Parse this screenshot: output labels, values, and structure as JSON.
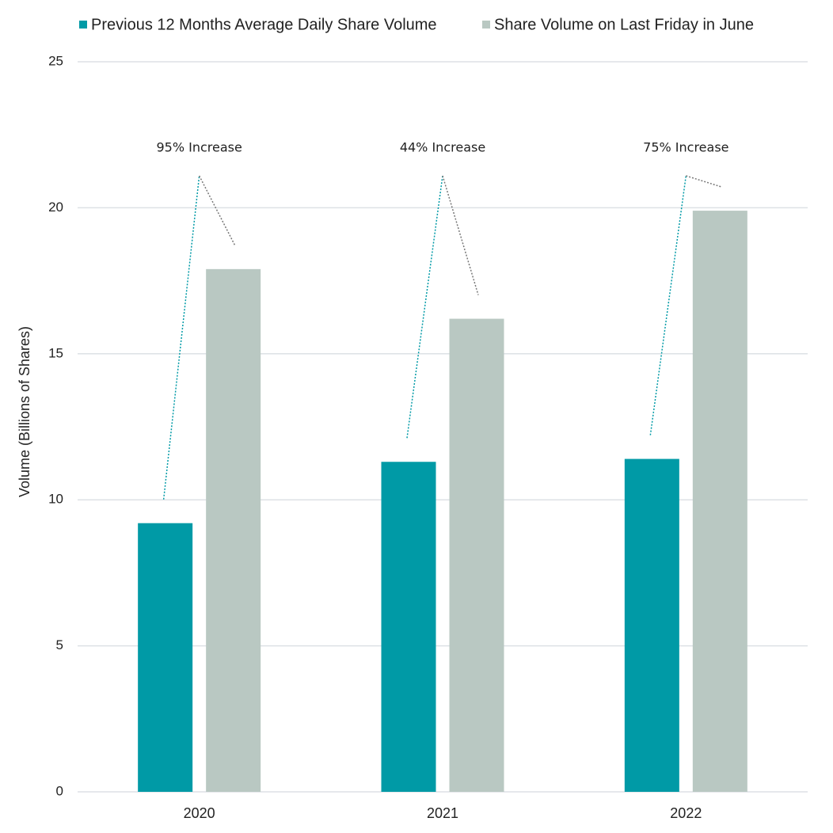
{
  "chart_data": {
    "type": "bar",
    "y_label": "Volume (Billions of Shares)",
    "categories": [
      "2020",
      "2021",
      "2022"
    ],
    "series": [
      {
        "name": "Previous 12 Months Average Daily Share Volume",
        "color": "#009aa6",
        "values": [
          9.2,
          11.3,
          11.4
        ]
      },
      {
        "name": "Share Volume on Last Friday in June",
        "color": "#b9c8c2",
        "values": [
          17.9,
          16.2,
          19.9
        ]
      }
    ],
    "annotations": [
      "95% Increase",
      "44% Increase",
      "75% Increase"
    ],
    "ylim": [
      0,
      25
    ],
    "yticks": [
      0,
      5,
      10,
      15,
      20,
      25
    ],
    "grid": true
  }
}
